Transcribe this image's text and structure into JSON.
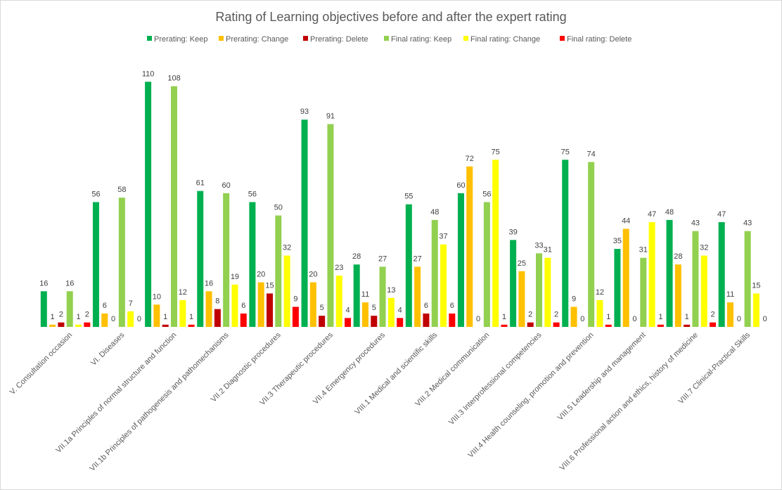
{
  "chart_data": {
    "type": "bar",
    "title": "Rating of Learning objectives before and after the expert rating",
    "xlabel": "",
    "ylabel": "",
    "ylim": [
      0,
      110
    ],
    "grid": false,
    "legend_position": "top",
    "categories": [
      "V. Consultation occasion",
      "VI. Diseases",
      "VII.1a Principles of normal structure and function",
      "VII.1b Principles of pathogenesis and pathomechanisms",
      "VII.2 Diagnostic procedures",
      "VII.3 Therapeutic procedures",
      "VII.4 Emergency procedures",
      "VIII.1 Medical and scientific skills",
      "VIII.2 Medical communication",
      "VIII.3 Interprofessional competencies",
      "VIII.4 Health counseling, promotion and prevention",
      "VIII.5 Leadership and management",
      "VIII.6 Professional action and ethics, history of medicine",
      "VIII.7 Clinical-Practical Skills"
    ],
    "series": [
      {
        "name": "Prerating: Keep",
        "color": "#00b050",
        "values": [
          16,
          56,
          110,
          61,
          56,
          93,
          28,
          55,
          60,
          39,
          75,
          35,
          48,
          47
        ]
      },
      {
        "name": "Prerating: Change",
        "color": "#ffc000",
        "values": [
          1,
          6,
          10,
          16,
          20,
          20,
          11,
          27,
          72,
          25,
          9,
          44,
          28,
          11
        ]
      },
      {
        "name": "Prerating: Delete",
        "color": "#c00000",
        "values": [
          2,
          0,
          1,
          8,
          15,
          5,
          5,
          6,
          0,
          2,
          0,
          0,
          1,
          0
        ]
      },
      {
        "name": "Final rating: Keep",
        "color": "#92d050",
        "values": [
          16,
          58,
          108,
          60,
          50,
          91,
          27,
          48,
          56,
          33,
          74,
          31,
          43,
          43
        ]
      },
      {
        "name": "Final rating: Change",
        "color": "#ffff00",
        "values": [
          1,
          7,
          12,
          19,
          32,
          23,
          13,
          37,
          75,
          31,
          12,
          47,
          32,
          15
        ]
      },
      {
        "name": "Final rating: Delete",
        "color": "#ff0000",
        "values": [
          2,
          0,
          1,
          6,
          9,
          4,
          4,
          6,
          1,
          2,
          1,
          1,
          2,
          0
        ]
      }
    ]
  }
}
